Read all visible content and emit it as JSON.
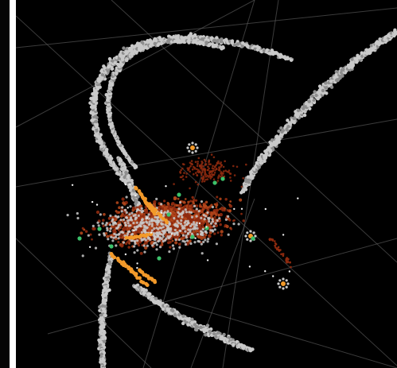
{
  "scene": {
    "background_color": "#000000",
    "colors": {
      "grid": "#6c6c6c",
      "gray_chain": "#c9c9c9",
      "gray_chain_dark": "#8d8d8d",
      "red_core": "#8f2a0f",
      "red_dense": "#b2461b",
      "orange": "#f39a2a",
      "green": "#3cc26b",
      "white_specks": "#efefef"
    }
  }
}
